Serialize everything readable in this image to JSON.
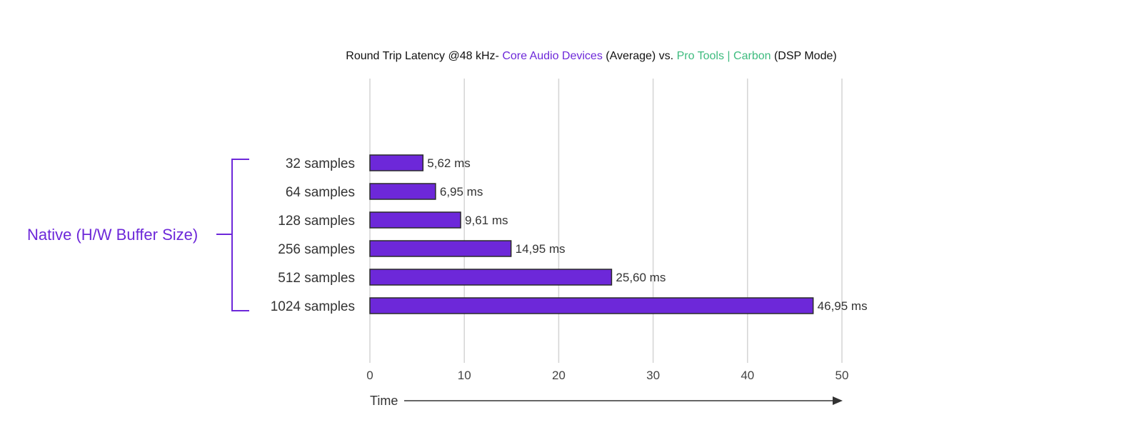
{
  "chart_data": {
    "type": "bar",
    "orientation": "horizontal",
    "title_parts": [
      {
        "text": "Round Trip Latency @48 kHz- ",
        "color": "#111111"
      },
      {
        "text": "Core Audio Devices",
        "color": "#6d28d9"
      },
      {
        "text": " (Average) vs. ",
        "color": "#111111"
      },
      {
        "text": "Pro Tools | Carbon",
        "color": "#3dbb7e"
      },
      {
        "text": " (DSP Mode)",
        "color": "#111111"
      }
    ],
    "group_label": "Native (H/W Buffer Size)",
    "group_color": "#6d28d9",
    "categories": [
      "32 samples",
      "64 samples",
      "128 samples",
      "256 samples",
      "512 samples",
      "1024 samples"
    ],
    "series": [
      {
        "values": [
          5.62,
          6.95,
          9.61,
          14.95,
          25.6,
          46.95
        ],
        "color": "#6d28d9"
      }
    ],
    "value_labels": [
      "5,62 ms",
      "6,95 ms",
      "9,61 ms",
      "14,95 ms",
      "25,60 ms",
      "46,95 ms"
    ],
    "xlim": [
      0,
      50
    ],
    "xticks": [
      0,
      10,
      20,
      30,
      40,
      50
    ],
    "xlabel": "Time",
    "grid": "vertical"
  }
}
